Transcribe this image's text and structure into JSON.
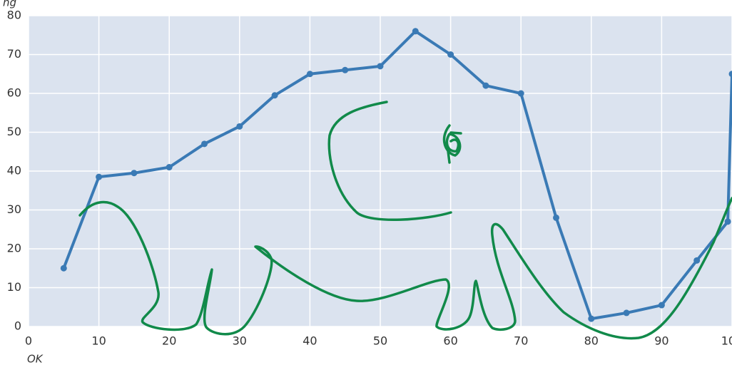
{
  "chart_data": {
    "type": "line",
    "annotations": [
      "ng",
      "OK"
    ],
    "x": [
      5,
      10,
      15,
      20,
      25,
      30,
      35,
      40,
      45,
      50,
      55,
      60,
      65,
      70,
      75,
      80,
      85,
      90,
      95,
      99.4,
      100
    ],
    "series": [
      {
        "color": "#3a7ab5",
        "values": [
          15,
          38.5,
          39.5,
          41,
          47,
          51.5,
          59.5,
          65,
          66,
          67,
          76,
          70,
          62,
          60,
          28,
          2,
          3.5,
          5.5,
          17,
          27,
          65
        ]
      }
    ],
    "xlim": [
      0,
      100
    ],
    "xticks": [
      0,
      10,
      20,
      30,
      40,
      50,
      60,
      70,
      80,
      90,
      100
    ],
    "ylim": [
      0,
      80
    ],
    "yticks": [
      0,
      10,
      20,
      30,
      40,
      50,
      60,
      70,
      80
    ],
    "grid": true
  }
}
